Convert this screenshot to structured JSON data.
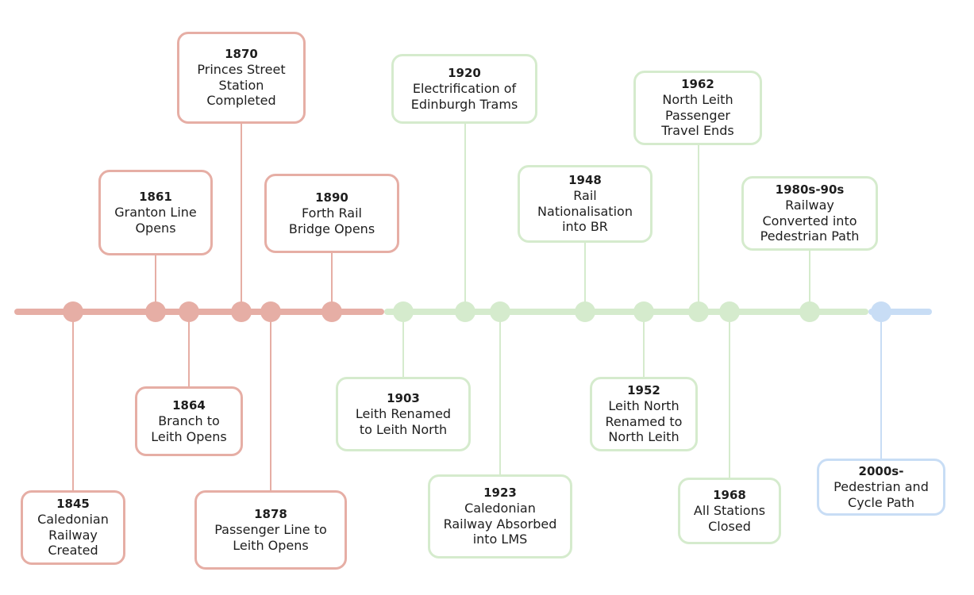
{
  "colors": {
    "red": "#e6aea5",
    "green": "#d5ebcd",
    "blue": "#c8ddf5"
  },
  "events": [
    {
      "year": "1845",
      "lines": [
        "Caledonian",
        "Railway",
        "Created"
      ],
      "era": "red"
    },
    {
      "year": "1861",
      "lines": [
        "Granton Line",
        "Opens"
      ],
      "era": "red"
    },
    {
      "year": "1864",
      "lines": [
        "Branch to",
        "Leith Opens"
      ],
      "era": "red"
    },
    {
      "year": "1870",
      "lines": [
        "Princes Street",
        "Station",
        "Completed"
      ],
      "era": "red"
    },
    {
      "year": "1878",
      "lines": [
        "Passenger Line to",
        "Leith Opens"
      ],
      "era": "red"
    },
    {
      "year": "1890",
      "lines": [
        "Forth Rail",
        "Bridge Opens"
      ],
      "era": "red"
    },
    {
      "year": "1903",
      "lines": [
        "Leith Renamed",
        "to Leith North"
      ],
      "era": "green"
    },
    {
      "year": "1920",
      "lines": [
        "Electrification of",
        "Edinburgh Trams"
      ],
      "era": "green"
    },
    {
      "year": "1923",
      "lines": [
        "Caledonian",
        "Railway Absorbed",
        "into LMS"
      ],
      "era": "green"
    },
    {
      "year": "1948",
      "lines": [
        "Rail",
        "Nationalisation",
        "into BR"
      ],
      "era": "green"
    },
    {
      "year": "1952",
      "lines": [
        "Leith North",
        "Renamed to",
        "North Leith"
      ],
      "era": "green"
    },
    {
      "year": "1962",
      "lines": [
        "North Leith",
        "Passenger",
        "Travel Ends"
      ],
      "era": "green"
    },
    {
      "year": "1968",
      "lines": [
        "All Stations",
        "Closed"
      ],
      "era": "green"
    },
    {
      "year": "1980s-90s",
      "lines": [
        "Railway",
        "Converted into",
        "Pedestrian Path"
      ],
      "era": "green"
    },
    {
      "year": "2000s-",
      "lines": [
        "Pedestrian and",
        "Cycle Path"
      ],
      "era": "blue"
    }
  ]
}
